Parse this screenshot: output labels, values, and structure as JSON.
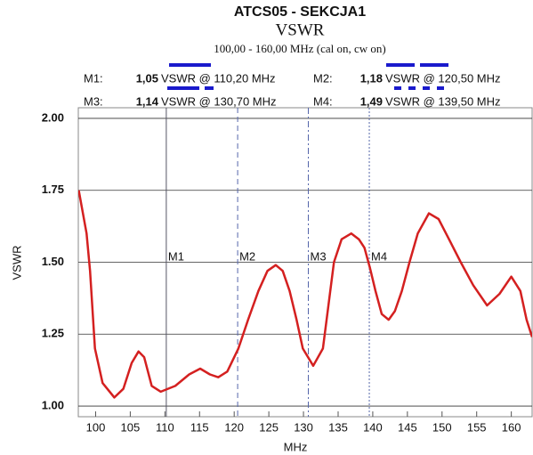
{
  "chart_data": {
    "type": "line",
    "title": "ATCS05 - SEKCJA1",
    "subtitle": "VSWR",
    "range_text": "100,00 - 160,00 MHz (cal on, cw on)",
    "xlabel": "MHz",
    "ylabel": "VSWR",
    "xlim": [
      97.5,
      163
    ],
    "ylim": [
      0.963,
      2.037
    ],
    "xticks": [
      100,
      105,
      110,
      115,
      120,
      125,
      130,
      135,
      140,
      145,
      150,
      155,
      160
    ],
    "yticks": [
      {
        "value": 1,
        "label": "1.00"
      },
      {
        "value": 1.25,
        "label": "1.25"
      },
      {
        "value": 1.5,
        "label": "1.50"
      },
      {
        "value": 1.75,
        "label": "1.75"
      },
      {
        "value": 2,
        "label": "2.00"
      }
    ],
    "grid": true,
    "series": [
      {
        "name": "VSWR",
        "color": "#d42020",
        "x": [
          97.56,
          98.7,
          99.2,
          99.9,
          101.0,
          102.7,
          104.0,
          105.2,
          106.2,
          107.0,
          108.1,
          109.4,
          111.5,
          113.5,
          115.1,
          116.5,
          117.7,
          119.0,
          120.6,
          122.0,
          123.5,
          124.8,
          126.0,
          127.0,
          128.0,
          129.0,
          129.9,
          131.4,
          132.8,
          133.6,
          134.4,
          135.5,
          136.9,
          138.0,
          138.8,
          139.6,
          140.4,
          141.3,
          142.3,
          143.2,
          144.2,
          145.3,
          146.5,
          148.1,
          149.5,
          151.0,
          152.7,
          154.5,
          156.5,
          158.3,
          160.0,
          161.3,
          162.2,
          163.0
        ],
        "values": [
          1.75,
          1.6,
          1.47,
          1.2,
          1.08,
          1.03,
          1.06,
          1.15,
          1.19,
          1.17,
          1.07,
          1.05,
          1.07,
          1.11,
          1.13,
          1.11,
          1.1,
          1.12,
          1.2,
          1.3,
          1.4,
          1.47,
          1.49,
          1.47,
          1.4,
          1.3,
          1.2,
          1.14,
          1.2,
          1.35,
          1.5,
          1.58,
          1.6,
          1.58,
          1.55,
          1.48,
          1.4,
          1.32,
          1.3,
          1.33,
          1.4,
          1.5,
          1.6,
          1.67,
          1.65,
          1.58,
          1.5,
          1.42,
          1.35,
          1.39,
          1.45,
          1.4,
          1.3,
          1.24
        ]
      }
    ],
    "markers": [
      {
        "name": "M1",
        "legend_label": "M1:",
        "x": 110.2,
        "value": 1.05,
        "value_label": "1,05",
        "text": "VSWR @ 110,20 MHz",
        "dash": "solid"
      },
      {
        "name": "M2",
        "legend_label": "M2:",
        "x": 120.5,
        "value": 1.18,
        "value_label": "1,18",
        "text": "VSWR @ 120,50 MHz",
        "dash": "dashed"
      },
      {
        "name": "M3",
        "legend_label": "M3:",
        "x": 130.7,
        "value": 1.14,
        "value_label": "1,14",
        "text": "VSWR @ 130,70 MHz",
        "dash": "dashdot"
      },
      {
        "name": "M4",
        "legend_label": "M4:",
        "x": 139.5,
        "value": 1.49,
        "value_label": "1,49",
        "text": "VSWR @ 139,50 MHz",
        "dash": "dotted"
      }
    ]
  }
}
